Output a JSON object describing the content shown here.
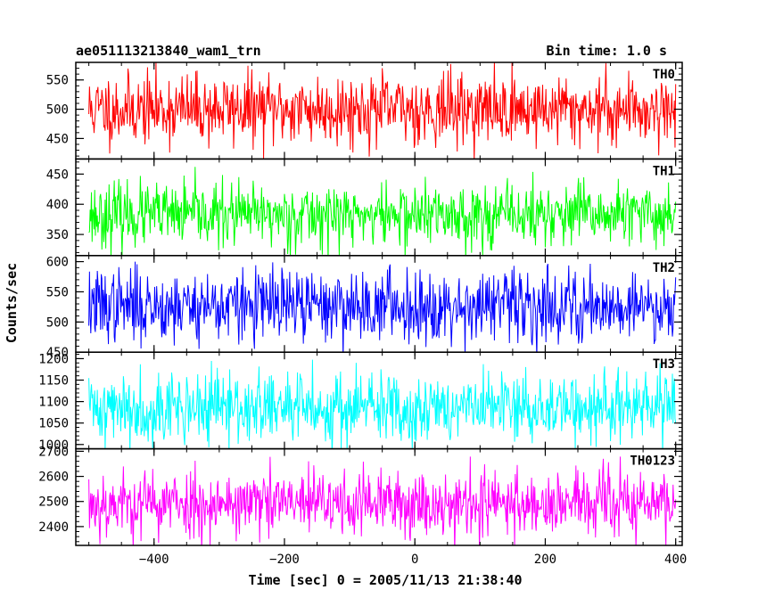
{
  "chart_data": {
    "type": "line",
    "title": "ae051113213840_wam1_trn",
    "bin_label": "Bin time: 1.0 s",
    "xlabel": "Time [sec] 0 = 2005/11/13 21:38:40",
    "ylabel": "Counts/sec",
    "xlim": [
      -520,
      410
    ],
    "xticks": [
      -400,
      -200,
      0,
      200,
      400
    ],
    "x_start": -500,
    "x_end": 400,
    "panels": [
      {
        "name": "TH0",
        "color": "#ff0000",
        "ylim": [
          415,
          580
        ],
        "yticks": [
          450,
          500,
          550
        ],
        "mean": 500,
        "noise": 30,
        "seed": 11
      },
      {
        "name": "TH1",
        "color": "#00ff00",
        "ylim": [
          315,
          475
        ],
        "yticks": [
          350,
          400,
          450
        ],
        "mean": 382,
        "noise": 26,
        "seed": 23
      },
      {
        "name": "TH2",
        "color": "#0000ff",
        "ylim": [
          450,
          610
        ],
        "yticks": [
          450,
          500,
          550,
          600
        ],
        "mean": 527,
        "noise": 30,
        "seed": 37
      },
      {
        "name": "TH3",
        "color": "#00ffff",
        "ylim": [
          990,
          1215
        ],
        "yticks": [
          1000,
          1050,
          1100,
          1150,
          1200
        ],
        "mean": 1085,
        "noise": 42,
        "seed": 41
      },
      {
        "name": "TH0123",
        "color": "#ff00ff",
        "ylim": [
          2325,
          2710
        ],
        "yticks": [
          2400,
          2500,
          2600,
          2700
        ],
        "mean": 2492,
        "noise": 68,
        "seed": 53
      }
    ]
  }
}
